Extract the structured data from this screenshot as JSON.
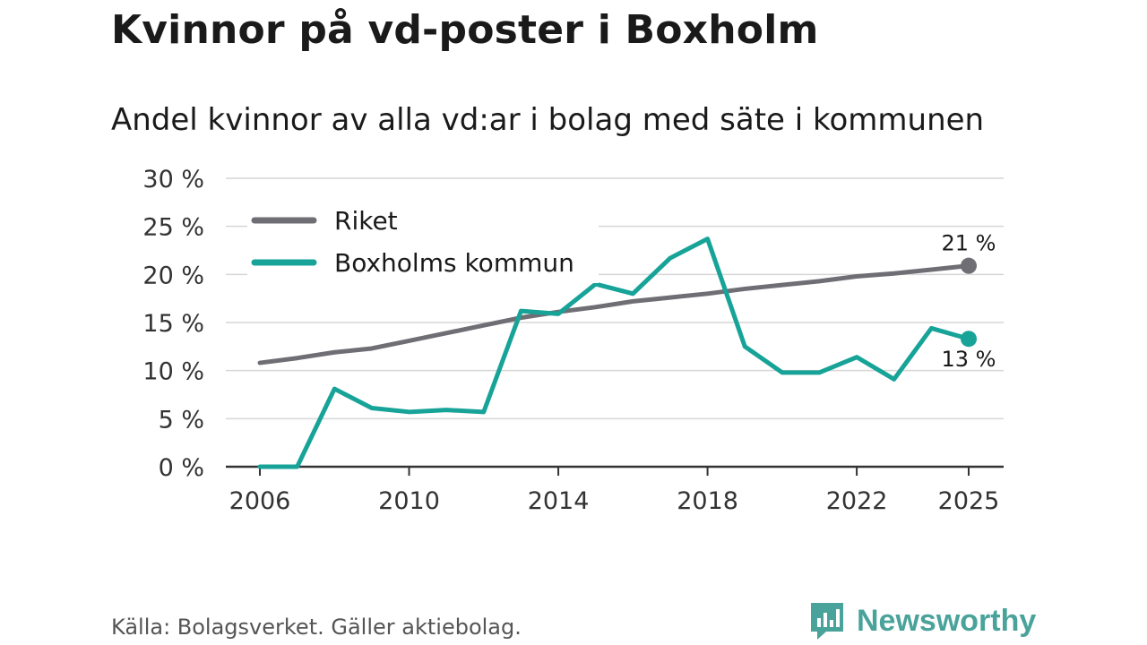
{
  "title": "Kvinnor på vd-poster i Boxholm",
  "subtitle": "Andel kvinnor av alla vd:ar i bolag med säte i kommunen",
  "source": "Källa: Bolagsverket. Gäller aktiebolag.",
  "brand": {
    "name": "Newsworthy",
    "icon": "newsworthy-logo-icon",
    "color": "#4aa39a"
  },
  "chart_data": {
    "type": "line",
    "x": [
      2006,
      2007,
      2008,
      2009,
      2010,
      2011,
      2012,
      2013,
      2014,
      2015,
      2016,
      2017,
      2018,
      2019,
      2020,
      2021,
      2022,
      2023,
      2024,
      2025
    ],
    "x_ticks": [
      "2006",
      "2010",
      "2014",
      "2018",
      "2022",
      "2025"
    ],
    "x_tick_values": [
      2006,
      2010,
      2014,
      2018,
      2022,
      2025
    ],
    "y_ticks": [
      "0 %",
      "5 %",
      "10 %",
      "15 %",
      "20 %",
      "25 %",
      "30 %"
    ],
    "y_tick_values": [
      0,
      5,
      10,
      15,
      20,
      25,
      30
    ],
    "ylim": [
      0,
      30
    ],
    "xlim": [
      2006,
      2025
    ],
    "grid": true,
    "legend_position": "top-left",
    "series": [
      {
        "name": "Riket",
        "color": "#6f6e75",
        "values": [
          10.8,
          11.3,
          11.9,
          12.3,
          13.1,
          13.9,
          14.7,
          15.5,
          16.1,
          16.6,
          17.2,
          17.6,
          18.0,
          18.5,
          18.9,
          19.3,
          19.8,
          20.1,
          20.5,
          20.9
        ],
        "end_label": "21 %"
      },
      {
        "name": "Boxholms kommun",
        "color": "#17a398",
        "values": [
          0,
          0,
          8.1,
          6.1,
          5.7,
          5.9,
          5.7,
          16.2,
          15.9,
          19.0,
          18.0,
          21.7,
          23.7,
          12.5,
          9.8,
          9.8,
          11.4,
          9.1,
          14.4,
          13.3
        ],
        "end_label": "13 %"
      }
    ]
  }
}
